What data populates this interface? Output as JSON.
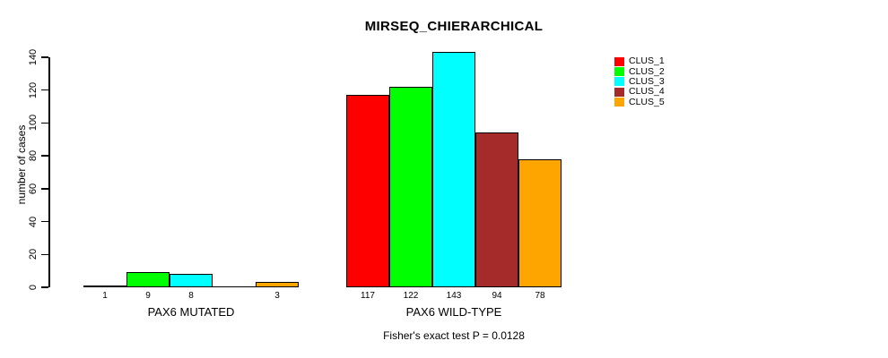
{
  "chart_data": {
    "type": "bar",
    "title": "MIRSEQ_CHIERARCHICAL",
    "ylabel": "number of cases",
    "xlabel": "",
    "ylim": [
      0,
      140
    ],
    "yticks": [
      0,
      20,
      40,
      60,
      80,
      100,
      120,
      140
    ],
    "grid": false,
    "legend_position": "right",
    "series": [
      {
        "name": "CLUS_1",
        "color": "#FF0000"
      },
      {
        "name": "CLUS_2",
        "color": "#00FF00"
      },
      {
        "name": "CLUS_3",
        "color": "#00FFFF"
      },
      {
        "name": "CLUS_4",
        "color": "#A52A2A"
      },
      {
        "name": "CLUS_5",
        "color": "#FFA500"
      }
    ],
    "groups": [
      {
        "label": "PAX6 MUTATED",
        "values": [
          1,
          9,
          8,
          0,
          3
        ],
        "bar_labels": [
          "1",
          "9",
          "8",
          "",
          "3"
        ]
      },
      {
        "label": "PAX6 WILD-TYPE",
        "values": [
          117,
          122,
          143,
          94,
          78
        ],
        "bar_labels": [
          "117",
          "122",
          "143",
          "94",
          "78"
        ]
      }
    ],
    "footnote": "Fisher's exact test P = 0.0128"
  }
}
